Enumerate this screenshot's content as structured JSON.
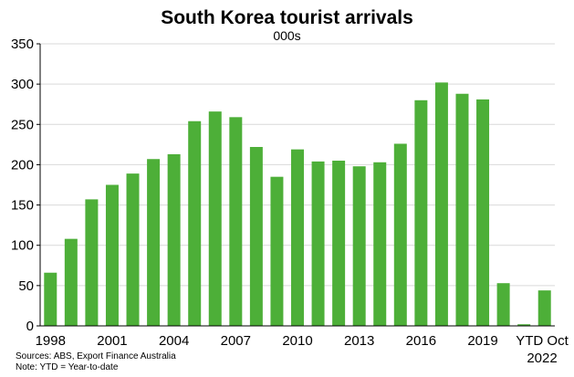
{
  "chart_data": {
    "type": "bar",
    "title": "South Korea tourist arrivals",
    "subtitle": "000s",
    "categories": [
      "1998",
      "1999",
      "2000",
      "2001",
      "2002",
      "2003",
      "2004",
      "2005",
      "2006",
      "2007",
      "2008",
      "2009",
      "2010",
      "2011",
      "2012",
      "2013",
      "2014",
      "2015",
      "2016",
      "2017",
      "2018",
      "2019",
      "2020",
      "2021",
      "YTD Oct 2022"
    ],
    "x_tick_labels": [
      "1998",
      "",
      "",
      "2001",
      "",
      "",
      "2004",
      "",
      "",
      "2007",
      "",
      "",
      "2010",
      "",
      "",
      "2013",
      "",
      "",
      "2016",
      "",
      "",
      "2019",
      "",
      "",
      "YTD Oct 2022"
    ],
    "values": [
      66,
      108,
      157,
      175,
      189,
      207,
      213,
      254,
      266,
      259,
      222,
      185,
      219,
      204,
      205,
      198,
      203,
      226,
      280,
      302,
      288,
      281,
      53,
      2,
      44
    ],
    "ylim": [
      0,
      350
    ],
    "yticks": [
      0,
      50,
      100,
      150,
      200,
      250,
      300,
      350
    ],
    "grid": true,
    "bar_color": "#4DAF38"
  },
  "footer": {
    "source": "Sources: ABS, Export Finance Australia",
    "note": "Note: YTD = Year-to-date"
  }
}
